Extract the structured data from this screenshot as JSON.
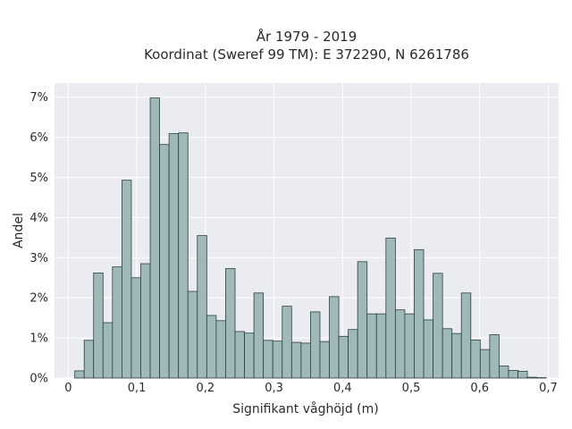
{
  "chart_data": {
    "type": "bar",
    "title": "År 1979 - 2019",
    "subtitle": "Koordinat (Sweref 99 TM): E 372290, N 6261786",
    "xlabel": "Signifikant våghöjd (m)",
    "ylabel": "Andel",
    "xlim": [
      -0.02,
      0.715
    ],
    "ylim": [
      0,
      7.35
    ],
    "bin_width": 0.01375,
    "bin_start": 0.0095,
    "x_ticks": [
      0,
      0.1,
      0.2,
      0.3,
      0.4,
      0.5,
      0.6,
      0.7
    ],
    "x_tick_labels": [
      "0",
      "0,1",
      "0,2",
      "0,3",
      "0,4",
      "0,5",
      "0,6",
      "0,7"
    ],
    "y_ticks": [
      0,
      1,
      2,
      3,
      4,
      5,
      6,
      7
    ],
    "y_tick_labels": [
      "0%",
      "1%",
      "2%",
      "3%",
      "4%",
      "5%",
      "6%",
      "7%"
    ],
    "values": [
      0.18,
      0.94,
      2.62,
      1.38,
      2.77,
      4.93,
      2.5,
      2.85,
      6.98,
      5.82,
      6.09,
      6.11,
      2.16,
      3.55,
      1.56,
      1.43,
      2.73,
      1.16,
      1.12,
      2.12,
      0.94,
      0.92,
      1.79,
      0.89,
      0.87,
      1.65,
      0.91,
      2.03,
      1.04,
      1.21,
      2.9,
      1.6,
      1.6,
      3.49,
      1.7,
      1.6,
      3.2,
      1.45,
      2.61,
      1.23,
      1.11,
      2.12,
      0.95,
      0.71,
      1.08,
      0.3,
      0.19,
      0.17,
      0.02,
      0.01
    ],
    "grid": true,
    "legend": "none"
  },
  "colors": {
    "bar_fill": "#9fb9b9",
    "bar_stroke": "#2f3f3f",
    "plot_bg": "#ebebf2",
    "grid": "#ffffff"
  }
}
